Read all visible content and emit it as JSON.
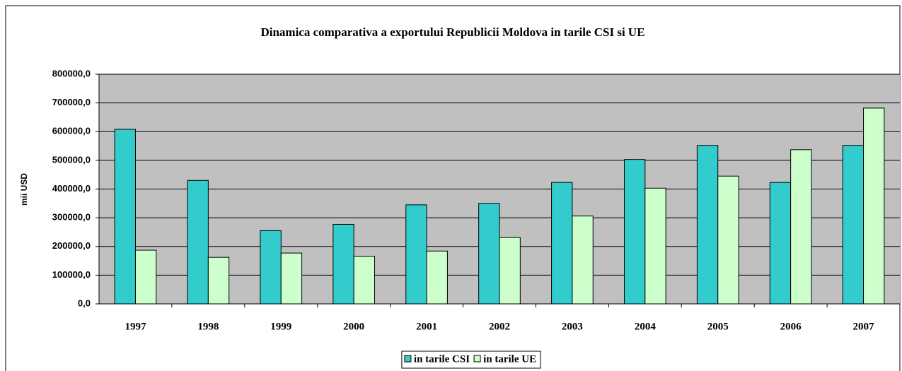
{
  "chart_data": {
    "type": "bar",
    "title": "Dinamica comparativa a exportului Republicii Moldova in tarile CSI si UE",
    "ylabel": "mii USD",
    "categories": [
      "1997",
      "1998",
      "1999",
      "2000",
      "2001",
      "2002",
      "2003",
      "2004",
      "2005",
      "2006",
      "2007"
    ],
    "series": [
      {
        "name": "in tarile CSI",
        "color": "#33cccc",
        "values": [
          608000,
          430000,
          255000,
          277000,
          345000,
          350000,
          423000,
          503000,
          552000,
          423000,
          552000
        ]
      },
      {
        "name": "in tarile UE",
        "color": "#ccffcc",
        "values": [
          187000,
          162000,
          177000,
          166000,
          184000,
          231000,
          306000,
          403000,
          445000,
          537000,
          682000
        ]
      }
    ],
    "ylim": [
      0,
      800000
    ],
    "yticks": [
      {
        "value": 0,
        "label": "0,0"
      },
      {
        "value": 100000,
        "label": "100000,0"
      },
      {
        "value": 200000,
        "label": "200000,0"
      },
      {
        "value": 300000,
        "label": "300000,0"
      },
      {
        "value": 400000,
        "label": "400000,0"
      },
      {
        "value": 500000,
        "label": "500000,0"
      },
      {
        "value": 600000,
        "label": "600000,0"
      },
      {
        "value": 700000,
        "label": "700000,0"
      },
      {
        "value": 800000,
        "label": "800000,0"
      }
    ],
    "grid": true,
    "legend": "bottom",
    "plot_background": "#c0c0c0"
  }
}
